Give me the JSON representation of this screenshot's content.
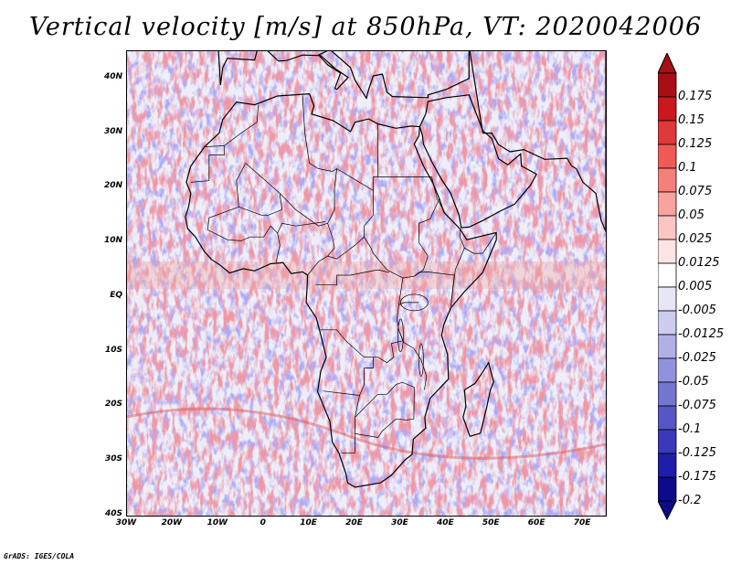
{
  "title": "Vertical velocity [m/s] at 850hPa, VT: 2020042006",
  "credit": "GrADS: IGES/COLA",
  "map": {
    "projection": "latlon",
    "lon_range": [
      -30,
      75
    ],
    "lat_range": [
      -40,
      45
    ],
    "lat_ticks": [
      {
        "value": 40,
        "label": "40N"
      },
      {
        "value": 30,
        "label": "30N"
      },
      {
        "value": 20,
        "label": "20N"
      },
      {
        "value": 10,
        "label": "10N"
      },
      {
        "value": 0,
        "label": "EQ"
      },
      {
        "value": -10,
        "label": "10S"
      },
      {
        "value": -20,
        "label": "20S"
      },
      {
        "value": -30,
        "label": "30S"
      },
      {
        "value": -40,
        "label": "40S"
      }
    ],
    "lon_ticks": [
      {
        "value": -30,
        "label": "30W"
      },
      {
        "value": -20,
        "label": "20W"
      },
      {
        "value": -10,
        "label": "10W"
      },
      {
        "value": 0,
        "label": "0"
      },
      {
        "value": 10,
        "label": "10E"
      },
      {
        "value": 20,
        "label": "20E"
      },
      {
        "value": 30,
        "label": "30E"
      },
      {
        "value": 40,
        "label": "40E"
      },
      {
        "value": 50,
        "label": "50E"
      },
      {
        "value": 60,
        "label": "60E"
      },
      {
        "value": 70,
        "label": "70E"
      }
    ],
    "background_color": "#f3f3fb",
    "coastline_color": "#000000"
  },
  "colorbar": {
    "labels": [
      "0.175",
      "0.15",
      "0.125",
      "0.1",
      "0.075",
      "0.05",
      "0.025",
      "0.0125",
      "0.005",
      "-0.005",
      "-0.0125",
      "-0.025",
      "-0.05",
      "-0.075",
      "-0.1",
      "-0.125",
      "-0.175",
      "-0.2"
    ],
    "colors": [
      "#a50f15",
      "#cb181d",
      "#e0393a",
      "#ef5a55",
      "#f4807a",
      "#f8a39e",
      "#fbc5c1",
      "#fde3e1",
      "#ffffff",
      "#e6e6f7",
      "#ccccef",
      "#b0b0e6",
      "#9292dc",
      "#7474d1",
      "#5656c5",
      "#3a3ab8",
      "#1e1ea6",
      "#0c0c8a"
    ],
    "top_arrow_color": "#a50f15",
    "bottom_arrow_color": "#0c0c8a"
  }
}
